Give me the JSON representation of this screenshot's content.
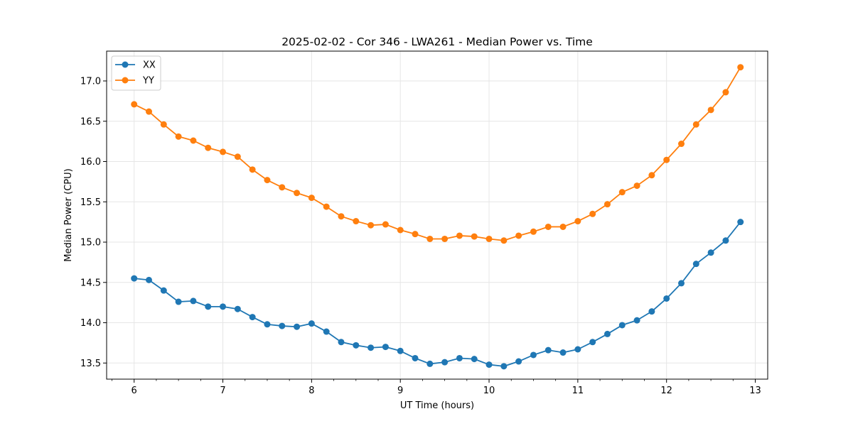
{
  "chart_data": {
    "type": "line",
    "title": "2025-02-02 - Cor 346 - LWA261 - Median Power vs. Time",
    "xlabel": "UT Time (hours)",
    "ylabel": "Median Power (CPU)",
    "xlim": [
      5.69,
      13.14
    ],
    "ylim": [
      13.3,
      17.37
    ],
    "xticks": [
      6,
      7,
      8,
      9,
      10,
      11,
      12,
      13
    ],
    "xtick_labels": [
      "6",
      "7",
      "8",
      "9",
      "10",
      "11",
      "12",
      "13"
    ],
    "yticks": [
      13.5,
      14.0,
      14.5,
      15.0,
      15.5,
      16.0,
      16.5,
      17.0
    ],
    "ytick_labels": [
      "13.5",
      "14.0",
      "14.5",
      "15.0",
      "15.5",
      "16.0",
      "16.5",
      "17.0"
    ],
    "grid": true,
    "legend": "top-left",
    "x": [
      6.0,
      6.1667,
      6.3333,
      6.5,
      6.6667,
      6.8333,
      7.0,
      7.1667,
      7.3333,
      7.5,
      7.6667,
      7.8333,
      8.0,
      8.1667,
      8.3333,
      8.5,
      8.6667,
      8.8333,
      9.0,
      9.1667,
      9.3333,
      9.5,
      9.6667,
      9.8333,
      10.0,
      10.1667,
      10.3333,
      10.5,
      10.6667,
      10.8333,
      11.0,
      11.1667,
      11.3333,
      11.5,
      11.6667,
      11.8333,
      12.0,
      12.1667,
      12.3333,
      12.5,
      12.6667,
      12.8333
    ],
    "series": [
      {
        "name": "XX",
        "color": "#1f77b4",
        "values": [
          14.55,
          14.53,
          14.4,
          14.26,
          14.27,
          14.2,
          14.2,
          14.17,
          14.07,
          13.98,
          13.96,
          13.95,
          13.99,
          13.89,
          13.76,
          13.72,
          13.69,
          13.7,
          13.65,
          13.56,
          13.49,
          13.51,
          13.56,
          13.55,
          13.48,
          13.46,
          13.52,
          13.6,
          13.66,
          13.63,
          13.67,
          13.76,
          13.86,
          13.97,
          14.03,
          14.14,
          14.3,
          14.49,
          14.73,
          14.87,
          15.02,
          15.25
        ]
      },
      {
        "name": "YY",
        "color": "#ff7f0e",
        "values": [
          16.71,
          16.62,
          16.46,
          16.31,
          16.26,
          16.17,
          16.12,
          16.06,
          15.9,
          15.77,
          15.68,
          15.61,
          15.55,
          15.44,
          15.32,
          15.26,
          15.21,
          15.22,
          15.15,
          15.1,
          15.04,
          15.04,
          15.08,
          15.07,
          15.04,
          15.02,
          15.08,
          15.13,
          15.19,
          15.19,
          15.26,
          15.35,
          15.47,
          15.62,
          15.7,
          15.83,
          16.02,
          16.22,
          16.46,
          16.64,
          16.86,
          17.17
        ]
      }
    ]
  },
  "theme": {
    "grid_color": "#e6e6e6",
    "axis_color": "#000000",
    "legend_border": "#cccccc"
  }
}
